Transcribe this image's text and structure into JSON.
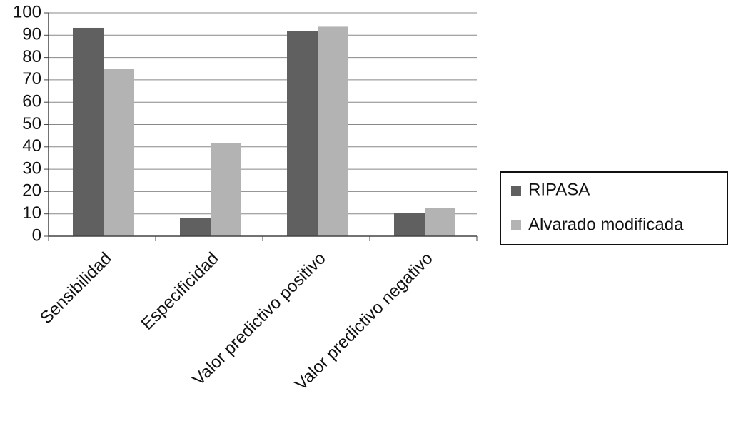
{
  "chart_data": {
    "type": "bar",
    "categories": [
      "Sensibilidad",
      "Especificidad",
      "Valor predictivo positivo",
      "Valor predictivo negativo"
    ],
    "series": [
      {
        "name": "RIPASA",
        "color": "#606060",
        "values": [
          93.3,
          8.3,
          92,
          10.3
        ]
      },
      {
        "name": "Alvarado modificada",
        "color": "#b3b3b3",
        "values": [
          75,
          41.7,
          93.8,
          12.5
        ]
      }
    ],
    "ylim": [
      0,
      100
    ],
    "yticks": [
      0,
      10,
      20,
      30,
      40,
      50,
      60,
      70,
      80,
      90,
      100
    ],
    "grid": true,
    "legend": "right"
  }
}
